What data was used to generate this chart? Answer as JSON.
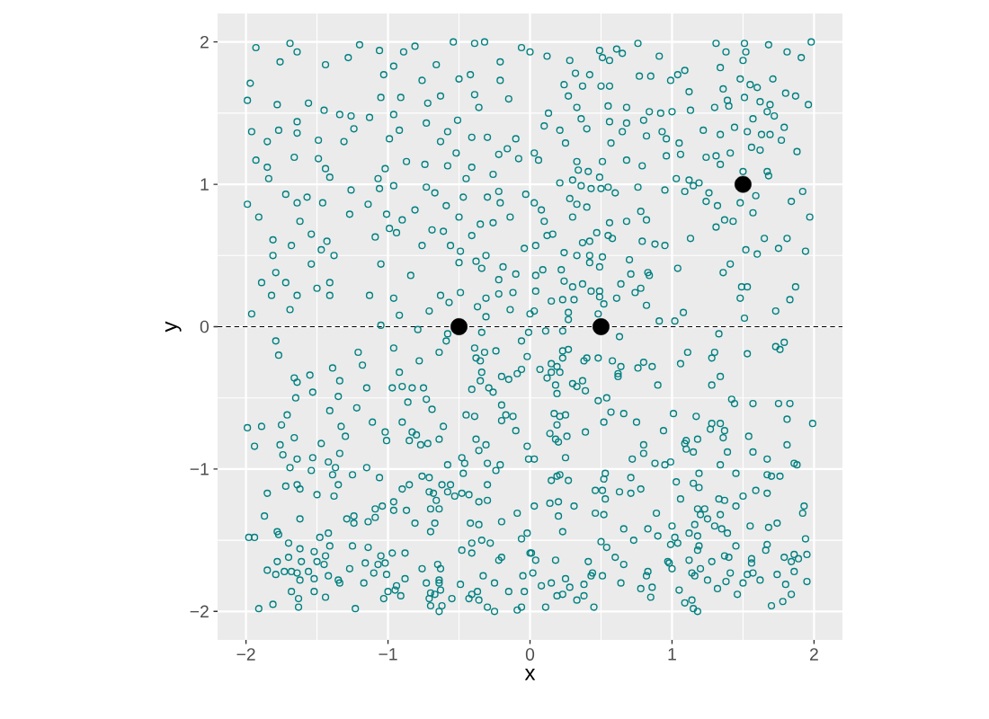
{
  "chart_data": {
    "type": "scatter",
    "xlabel": "x",
    "ylabel": "y",
    "xlim": [
      -2.2,
      2.2
    ],
    "ylim": [
      -2.2,
      2.2
    ],
    "xticks": [
      {
        "value": -2,
        "label": "−2"
      },
      {
        "value": -1,
        "label": "−1"
      },
      0,
      1,
      2
    ],
    "yticks": [
      {
        "value": -2,
        "label": "−2"
      },
      {
        "value": -1,
        "label": "−1"
      },
      0,
      1,
      2
    ],
    "grid": true,
    "marker": "circle",
    "ref_lines": [
      {
        "axis": "y",
        "value": 0,
        "line_style": "dashed",
        "color": "#000000"
      }
    ],
    "series": [
      {
        "color": "#008080",
        "x": [
          -1.93,
          -1.69,
          -1.64,
          -1.76,
          -1.97,
          -1.99,
          -1.44,
          -1.28,
          -1.2,
          -1.06,
          -0.89,
          -0.81,
          -0.54,
          -0.39,
          -0.32,
          -0.06,
          -1.03,
          -0.96,
          -0.66,
          -0.76,
          -0.5,
          -0.42,
          -0.21,
          -0.21,
          -0.15,
          -1.78,
          -1.56,
          -1.05,
          -0.91,
          -0.72,
          -0.63,
          -0.39,
          -0.36,
          -1.45,
          -1.34,
          -1.26,
          -1.13,
          -0.96,
          -1.96,
          -1.77,
          -1.64,
          -1.64,
          -1.24,
          -0.92,
          -0.73,
          -0.51,
          -0.58,
          -1.85,
          -1.49,
          -1.31,
          -0.99,
          -0.63,
          -0.41,
          -0.3,
          -0.1,
          -1.93,
          -1.66,
          -1.49,
          -1.44,
          -1.41,
          -1.85,
          -1.84,
          -1.02,
          -0.87,
          -0.74,
          -0.58,
          -0.52,
          -0.41,
          -0.22,
          -0.16,
          -0.08,
          -0.26,
          -1.07,
          -0.45,
          -1.99,
          -1.91,
          -1.72,
          -1.64,
          -1.57,
          -1.46,
          -1.26,
          -1.27,
          -1.14,
          -1.06,
          -0.96,
          -1.01,
          -0.9,
          -0.81,
          -0.73,
          -0.67,
          -0.59,
          -0.5,
          -0.47,
          -0.3,
          -0.22,
          -0.21,
          -0.14,
          -0.03,
          -1.62,
          -1.81,
          -1.68,
          -1.54,
          -1.43,
          -1.47,
          -1.38,
          -1.81,
          -1.79,
          -1.89,
          -1.72,
          -1.82,
          -1.64,
          -1.5,
          -1.41,
          -1.41,
          -1.69,
          -1.96,
          -1.54,
          -1.09,
          -1.05,
          -0.99,
          -0.94,
          -0.84,
          -1.13,
          -0.96,
          -0.92,
          -0.76,
          -0.69,
          -0.61,
          -0.56,
          -0.49,
          -0.5,
          -0.38,
          -0.41,
          -0.35,
          -0.26,
          -0.31,
          -0.34,
          -0.19,
          -0.1,
          -0.22,
          -0.04,
          -0.63,
          -0.49,
          -0.57,
          -0.71,
          -0.37,
          -0.31,
          -0.31,
          -0.22,
          -0.14,
          -0.12,
          0,
          -1.05,
          0,
          0.12,
          0.28,
          0.49,
          0.51,
          0.56,
          0.61,
          0.65,
          0.76,
          0.91,
          1.31,
          1.38,
          1.51,
          1.52,
          1.5,
          1.68,
          1.81,
          1.91,
          1.98,
          0.32,
          0.42,
          0.24,
          0.37,
          0.5,
          0.56,
          0.27,
          0.77,
          0.85,
          0.99,
          1.04,
          1.09,
          1.12,
          1.13,
          1.34,
          1.36,
          1.48,
          1.55,
          1.6,
          1.71,
          1.8,
          1.87,
          1.96,
          1.51,
          1.62,
          1.69,
          1.3,
          1.39,
          1.4,
          0.13,
          0.1,
          0.21,
          0.25,
          0.33,
          0.36,
          0.4,
          0.55,
          0.56,
          0.57,
          0.68,
          0.68,
          0.65,
          0.8,
          0.84,
          0.92,
          1,
          0.82,
          0.93,
          0.96,
          1.05,
          1.06,
          0.96,
          1.22,
          1.34,
          1.44,
          1.53,
          1.63,
          1.69,
          1.67,
          1.57,
          1.72,
          1.79,
          1.77,
          1.88,
          1.56,
          1.62,
          1.41,
          1.24,
          1.31,
          1.34,
          0.03,
          0.06,
          0.68,
          0.79,
          0.51,
          0.33,
          0.34,
          0.3,
          0.21,
          0.41,
          0.49,
          0.36,
          0.43,
          0.5,
          0.55,
          0.6,
          0.76,
          0.95,
          1.03,
          1.12,
          1.15,
          1.19,
          1.09,
          1.26,
          1.5,
          1.67,
          1.68,
          1.92,
          1.84,
          1.97,
          1.59,
          1.48,
          1.57,
          1.24,
          1.32,
          1.37,
          1.43,
          1.31,
          0.03,
          0.08,
          0.1,
          0.12,
          0.16,
          0.04,
          0.3,
          0.28,
          0.33,
          0.4,
          0.56,
          0.47,
          0.55,
          0.58,
          0.37,
          0.42,
          0.68,
          0.78,
          0.82,
          0.79,
          0.88,
          0.95,
          1.13,
          0.24,
          0.33,
          0.42,
          0.51,
          0.42,
          0.49,
          0.7,
          0.71,
          0.83,
          0.84,
          1.04,
          1.52,
          1.6,
          1.65,
          1.75,
          1.81,
          1.94,
          1.41,
          1.36,
          1.49,
          1.53,
          1.87,
          1.83,
          1.73,
          1.48,
          1.51,
          0.04,
          0.09,
          0.22,
          0.24,
          0.3,
          0.37,
          0.43,
          0.49,
          0.52,
          0.49,
          0.61,
          0.64,
          0.74,
          0.78,
          0.82,
          0.04,
          0.15,
          0.23,
          0.31,
          0.03,
          0.27,
          0.27,
          0.48,
          0.91,
          1.02,
          1.08,
          -0.79,
          -0.58,
          -0.59,
          -0.34,
          -0.01,
          -0.06,
          -1.79,
          -1.77,
          -0.96,
          -0.64,
          -0.39,
          -0.32,
          -0.24,
          -0.38,
          -0.35,
          -0.02,
          -1.21,
          -1.18,
          -1.39,
          -0.78,
          -0.92,
          -0.34,
          -0.35,
          -0.2,
          -0.15,
          -0.09,
          -0.06,
          -1.66,
          -1.64,
          -1.55,
          -1.34,
          -1.65,
          -1.53,
          -1.35,
          -1.15,
          -0.97,
          -0.9,
          -0.83,
          -0.75,
          -0.73,
          -0.69,
          -0.86,
          -0.41,
          -0.29,
          -0.26,
          -1.22,
          -1.41,
          -1.71,
          -1.75,
          -1.89,
          -1.99,
          -1.94,
          -1.66,
          -1.76,
          -1.74,
          -1.47,
          -1.33,
          -1.3,
          -1.34,
          -1.11,
          -1.02,
          -1.01,
          -0.9,
          -0.83,
          -0.8,
          -0.85,
          -0.77,
          -0.72,
          -0.64,
          -0.61,
          -0.45,
          -0.39,
          -0.38,
          -0.31,
          -0.36,
          -0.1,
          -0.02,
          -0.17,
          -0.12,
          -0.2,
          -0.2,
          -0.01,
          -1.64,
          -1.69,
          -1.53,
          -1.54,
          -1.42,
          -1.37,
          -1.39,
          -1.35,
          -1.38,
          -1.25,
          -1.15,
          -1.06,
          -1.5,
          -1.72,
          -1.64,
          -1.62,
          -1.85,
          -1.87,
          -1.62,
          -0.96,
          -0.96,
          -1.04,
          -1.09,
          -1.09,
          -1.14,
          -1.29,
          -1.24,
          -1.24,
          -0.9,
          -0.85,
          -0.87,
          -0.81,
          -0.76,
          -0.71,
          -0.71,
          -0.68,
          -0.66,
          -0.7,
          -0.64,
          -0.67,
          -0.7,
          -0.62,
          -0.56,
          -0.58,
          -0.53,
          -0.48,
          -0.43,
          -0.58,
          -0.47,
          -0.46,
          -0.48,
          -0.3,
          -0.21,
          -0.24,
          -0.3,
          -0.36,
          -0.3,
          -0.09,
          -0.2,
          -0.42,
          -0.36,
          -1.98,
          -1.94,
          -1.78,
          -1.77,
          -1.7,
          -1.62,
          -1.48,
          -1.42,
          -1.41,
          -1.52,
          -1.44,
          -1.5,
          -1.45,
          -1.7,
          -1.78,
          -1.61,
          -1.85,
          -1.79,
          -1.73,
          -1.68,
          -1.64,
          -1.62,
          -1.56,
          -1.52,
          -1.42,
          -1.35,
          -1.34,
          -1.68,
          -1.63,
          -1.63,
          -1.52,
          -1.44,
          -1.81,
          -1.91,
          -1.25,
          -1.14,
          -1.05,
          -1.07,
          -1.02,
          -1.16,
          -1.27,
          -1.1,
          -1.17,
          -1.23,
          -1.01,
          -0.97,
          -0.88,
          -0.88,
          -0.94,
          -1,
          -0.95,
          -0.91,
          -1.03,
          -0.76,
          -0.73,
          -0.65,
          -0.63,
          -0.64,
          -0.64,
          -0.63,
          -0.7,
          -0.67,
          -0.71,
          -0.7,
          -0.62,
          -0.64,
          -0.55,
          -0.49,
          -0.48,
          -0.41,
          -0.41,
          -0.34,
          -0.28,
          -0.22,
          -0.2,
          -0.33,
          -0.25,
          -0.43,
          -0.41,
          -0.37,
          -0.36,
          -0.3,
          -0.25,
          -0.15,
          -0.09,
          -0.06,
          -0.04,
          -0.05,
          -0.06,
          -0.02,
          0,
          0.11,
          0.23,
          0.63,
          1.33,
          0.23,
          0.27,
          0.23,
          0.38,
          0.4,
          0.48,
          0.58,
          0.64,
          0.62,
          0.62,
          0.76,
          0.8,
          0.86,
          0.9,
          0.07,
          0.15,
          0.19,
          0.21,
          0.15,
          0.12,
          0.18,
          0.19,
          0.3,
          0.33,
          0.37,
          0.39,
          0.48,
          0.54,
          1.06,
          1.11,
          1.28,
          1.3,
          1.28,
          1.34,
          1.53,
          1.73,
          1.76,
          1.79,
          1.42,
          1.44,
          1.57,
          1.75,
          1.83,
          1.81,
          1.99,
          0.17,
          0.21,
          0.25,
          0.19,
          0.14,
          0.18,
          0.2,
          0.26,
          0.39,
          0.52,
          0.57,
          0.66,
          0.75,
          0.94,
          1.01,
          1.17,
          0.8,
          0.8,
          0.72,
          0.03,
          0.25,
          0.88,
          0.95,
          0.99,
          1.09,
          1.1,
          1.1,
          1.15,
          1.18,
          1.27,
          1.28,
          1.34,
          1.37,
          1.36,
          1.39,
          1.34,
          1.54,
          1.57,
          1.67,
          1.81,
          1.86,
          1.88,
          0.15,
          0.19,
          0.21,
          0.27,
          0.03,
          0.14,
          0.2,
          0.2,
          0.23,
          0.31,
          0.46,
          0.51,
          0.53,
          0.52,
          0.53,
          0.46,
          0.52,
          0.63,
          0.71,
          0.71,
          0.78,
          0.66,
          0.83,
          0.89,
          0.9,
          1.03,
          1.06,
          1.15,
          1.19,
          1.19,
          1.18,
          1.23,
          1.2,
          1.25,
          1.3,
          1.34,
          1.35,
          1.39,
          1.33,
          1.37,
          1.45,
          1.5,
          1.59,
          1.45,
          1.67,
          1.7,
          1.76,
          1.67,
          1.93,
          1.92,
          1.74,
          1.68,
          1.55,
          1,
          0.99,
          1.02,
          1.04,
          1.16,
          1.12,
          1.18,
          1.19,
          1.18,
          0.5,
          0.54,
          0.73,
          0.6,
          0.66,
          0.41,
          0.18,
          0.04,
          0.01,
          0.02,
          0.08,
          0.15,
          0.25,
          0.28,
          0.19,
          0.23,
          0.33,
          0.38,
          0.38,
          0.43,
          0.44,
          0.51,
          0.45,
          0.11,
          0.64,
          0.78,
          0.82,
          0.83,
          0.86,
          0.85,
          0.97,
          0.98,
          1,
          1.12,
          1.14,
          1.16,
          1.2,
          1.25,
          1.28,
          1.05,
          1.09,
          1.14,
          1.15,
          1.18,
          1.32,
          1.38,
          1.41,
          1.37,
          1.4,
          1.45,
          1.46,
          1.5,
          1.53,
          1.57,
          1.56,
          1.56,
          1.62,
          1.66,
          1.67,
          1.74,
          1.79,
          1.86,
          1.84,
          1.89,
          1.95,
          1.94,
          1.86,
          1.95,
          1.8,
          1.84,
          1.7,
          1.78
        ],
        "values": [
          1.96,
          1.99,
          1.93,
          1.86,
          1.71,
          1.59,
          1.84,
          1.89,
          1.98,
          1.94,
          1.93,
          1.97,
          2,
          1.99,
          2,
          1.96,
          1.77,
          1.83,
          1.84,
          1.73,
          1.74,
          1.77,
          1.86,
          1.73,
          1.6,
          1.56,
          1.57,
          1.61,
          1.61,
          1.57,
          1.62,
          1.63,
          1.54,
          1.52,
          1.49,
          1.48,
          1.47,
          1.49,
          1.37,
          1.38,
          1.44,
          1.36,
          1.39,
          1.38,
          1.43,
          1.45,
          1.37,
          1.3,
          1.31,
          1.3,
          1.32,
          1.3,
          1.33,
          1.33,
          1.32,
          1.17,
          1.19,
          1.18,
          1.11,
          1.05,
          1.12,
          1.04,
          1.11,
          1.16,
          1.14,
          1.13,
          1.22,
          1.12,
          1.21,
          1.25,
          1.18,
          1.07,
          1.04,
          1.04,
          0.86,
          0.77,
          0.93,
          0.87,
          0.91,
          0.87,
          0.96,
          0.79,
          0.86,
          0.97,
          0.99,
          0.79,
          0.75,
          0.82,
          0.98,
          0.94,
          0.85,
          0.77,
          0.91,
          0.91,
          0.95,
          0.87,
          0.77,
          0.93,
          0.74,
          0.61,
          0.57,
          0.65,
          0.6,
          0.54,
          0.5,
          0.5,
          0.38,
          0.31,
          0.31,
          0.22,
          0.22,
          0.27,
          0.31,
          0.22,
          0.12,
          0.09,
          0.44,
          0.63,
          0.44,
          0.69,
          0.66,
          0.36,
          0.22,
          0.2,
          0.08,
          0.57,
          0.68,
          0.67,
          0.57,
          0.53,
          0.45,
          0.46,
          0.64,
          0.72,
          0.73,
          0.5,
          0.41,
          0.42,
          0.37,
          0.33,
          0.55,
          0.22,
          0.24,
          0.17,
          0.11,
          0.14,
          0.2,
          0.07,
          0.23,
          0.12,
          0.24,
          0.09,
          0.01,
          1.93,
          1.9,
          1.87,
          1.94,
          1.89,
          1.87,
          1.95,
          1.92,
          1.99,
          1.9,
          1.99,
          1.93,
          1.99,
          1.93,
          1.87,
          1.98,
          1.93,
          1.89,
          2,
          1.78,
          1.77,
          1.7,
          1.69,
          1.69,
          1.69,
          1.62,
          1.76,
          1.76,
          1.73,
          1.77,
          1.8,
          1.65,
          1.52,
          1.82,
          1.67,
          1.74,
          1.7,
          1.68,
          1.74,
          1.64,
          1.62,
          1.56,
          1.61,
          1.58,
          1.56,
          1.54,
          1.59,
          1.55,
          1.5,
          1.41,
          1.38,
          1.29,
          1.54,
          1.46,
          1.39,
          1.55,
          1.44,
          1.29,
          1.54,
          1.43,
          1.37,
          1.45,
          1.51,
          1.5,
          1.51,
          1.34,
          1.37,
          1.32,
          1.29,
          1.21,
          1.2,
          1.38,
          1.35,
          1.4,
          1.37,
          1.35,
          1.35,
          1.51,
          1.46,
          1.48,
          1.4,
          1.31,
          1.23,
          1.26,
          1.24,
          1.22,
          1.19,
          1.2,
          1.14,
          1.22,
          1.17,
          1.17,
          1.13,
          1.16,
          1.16,
          1.1,
          1.03,
          1.01,
          1.09,
          1.05,
          0.99,
          0.97,
          0.97,
          0.98,
          0.94,
          0.98,
          0.96,
          1.04,
          1.03,
          0.99,
          1.01,
          0.95,
          0.94,
          1.09,
          1.09,
          1.06,
          0.95,
          0.88,
          0.77,
          0.92,
          0.87,
          0.8,
          0.88,
          0.85,
          0.75,
          0.74,
          0.7,
          0.87,
          0.82,
          0.74,
          0.64,
          0.65,
          0.57,
          0.77,
          0.9,
          0.86,
          0.84,
          0.73,
          0.66,
          0.64,
          0.62,
          0.59,
          0.6,
          0.74,
          0.81,
          0.75,
          0.6,
          0.58,
          0.57,
          0.62,
          0.52,
          0.5,
          0.5,
          0.49,
          0.45,
          0.42,
          0.47,
          0.37,
          0.38,
          0.36,
          0.41,
          0.54,
          0.51,
          0.62,
          0.55,
          0.62,
          0.53,
          0.44,
          0.38,
          0.28,
          0.28,
          0.28,
          0.19,
          0.11,
          0.2,
          0.06,
          0.36,
          0.4,
          0.4,
          0.32,
          0.28,
          0.3,
          0.25,
          0.25,
          0.16,
          0.21,
          0.2,
          0.3,
          0.24,
          0.27,
          0.15,
          0.25,
          0.18,
          0.19,
          0.19,
          0.11,
          0.1,
          0.05,
          0.09,
          0.04,
          0.04,
          0.1,
          -0.02,
          -0.05,
          -0.1,
          -0.04,
          -0.04,
          -0.1,
          -0.1,
          -0.2,
          -0.15,
          -0.18,
          -0.15,
          -0.18,
          -0.17,
          -0.22,
          -0.24,
          -0.21,
          -0.18,
          -0.27,
          -0.29,
          -0.24,
          -0.32,
          -0.32,
          -0.38,
          -0.35,
          -0.37,
          -0.33,
          -0.3,
          -0.36,
          -0.39,
          -0.34,
          -0.38,
          -0.5,
          -0.46,
          -0.49,
          -0.43,
          -0.43,
          -0.42,
          -0.43,
          -0.43,
          -0.51,
          -0.58,
          -0.53,
          -0.44,
          -0.43,
          -0.46,
          -0.57,
          -0.59,
          -0.62,
          -0.69,
          -0.7,
          -0.71,
          -0.84,
          -0.78,
          -0.83,
          -0.9,
          -0.82,
          -0.7,
          -0.77,
          -0.89,
          -0.67,
          -0.74,
          -0.8,
          -0.67,
          -0.74,
          -0.76,
          -0.8,
          -0.83,
          -0.82,
          -0.79,
          -0.7,
          -0.62,
          -0.63,
          -0.79,
          -0.83,
          -0.87,
          -0.73,
          -0.84,
          -0.62,
          -0.63,
          -0.66,
          -0.55,
          -0.93,
          -0.93,
          -0.99,
          -0.92,
          -1.01,
          -0.95,
          -0.99,
          -1.04,
          -1.11,
          -1.19,
          -1.04,
          -0.99,
          -1.06,
          -1.18,
          -1.12,
          -1.11,
          -1.14,
          -1.17,
          -1.33,
          -1.35,
          -1.23,
          -1.29,
          -1.26,
          -1.28,
          -1.34,
          -1.37,
          -1.35,
          -1.33,
          -1.38,
          -1.14,
          -1.11,
          -1.29,
          -1.38,
          -1.05,
          -1.06,
          -1.16,
          -1.17,
          -1.22,
          -1.28,
          -1.28,
          -1.38,
          -1.44,
          -1.11,
          -1.11,
          -1.16,
          -1.19,
          -1.17,
          -1.18,
          -0.97,
          -1.03,
          -0.96,
          -0.92,
          -0.96,
          -0.97,
          -1.01,
          -1.11,
          -1.23,
          -1.22,
          -1.31,
          -1.37,
          -1.38,
          -1.39,
          -1.48,
          -1.48,
          -1.44,
          -1.46,
          -1.52,
          -1.56,
          -1.48,
          -1.45,
          -1.54,
          -1.58,
          -1.61,
          -1.65,
          -1.67,
          -1.62,
          -1.65,
          -1.65,
          -1.71,
          -1.74,
          -1.72,
          -1.72,
          -1.73,
          -1.78,
          -1.72,
          -1.77,
          -1.75,
          -1.78,
          -1.8,
          -1.86,
          -1.91,
          -1.97,
          -1.86,
          -1.9,
          -1.95,
          -1.98,
          -1.54,
          -1.55,
          -1.61,
          -1.67,
          -1.66,
          -1.66,
          -1.7,
          -1.73,
          -1.8,
          -1.98,
          -1.74,
          -1.59,
          -1.59,
          -1.77,
          -1.82,
          -1.86,
          -1.85,
          -1.89,
          -1.91,
          -1.7,
          -1.8,
          -1.67,
          -1.7,
          -1.78,
          -1.8,
          -1.85,
          -1.87,
          -1.88,
          -1.91,
          -1.96,
          -1.96,
          -2,
          -1.91,
          -1.81,
          -1.57,
          -1.52,
          -1.59,
          -1.5,
          -1.52,
          -1.64,
          -1.62,
          -1.75,
          -1.8,
          -1.91,
          -1.88,
          -1.86,
          -1.92,
          -1.97,
          -2,
          -1.86,
          -1.99,
          -1.97,
          -1.86,
          -1.75,
          -1.49,
          -1.45,
          -1.59,
          -0.03,
          -0.03,
          -0.07,
          -0.05,
          -0.17,
          -0.16,
          -0.22,
          -0.24,
          -0.22,
          -0.22,
          -0.24,
          -0.28,
          -0.33,
          -0.35,
          -0.29,
          -0.25,
          -0.28,
          -0.41,
          -0.3,
          -0.26,
          -0.28,
          -0.32,
          -0.32,
          -0.36,
          -0.41,
          -0.47,
          -0.4,
          -0.42,
          -0.38,
          -0.45,
          -0.52,
          -0.5,
          -0.26,
          -0.18,
          -0.22,
          -0.18,
          -0.41,
          -0.35,
          -0.19,
          -0.14,
          -0.16,
          -0.11,
          -0.51,
          -0.54,
          -0.54,
          -0.54,
          -0.54,
          -0.65,
          -0.68,
          -0.61,
          -0.63,
          -0.62,
          -0.69,
          -0.75,
          -0.79,
          -0.81,
          -0.77,
          -0.74,
          -0.67,
          -0.6,
          -0.61,
          -0.67,
          -0.73,
          -0.61,
          -0.63,
          -0.83,
          -0.89,
          -0.93,
          -0.93,
          -0.92,
          -0.96,
          -0.97,
          -0.95,
          -0.82,
          -0.8,
          -0.86,
          -0.88,
          -0.79,
          -0.72,
          -0.68,
          -0.68,
          -0.73,
          -0.78,
          -0.88,
          -0.97,
          -0.77,
          -0.88,
          -0.93,
          -0.83,
          -0.96,
          -0.97,
          -1.08,
          -1.05,
          -1.04,
          -1.08,
          -1.26,
          -1.24,
          -1.23,
          -1.33,
          -1.44,
          -1.26,
          -1.15,
          -1.15,
          -1.03,
          -1.07,
          -1.21,
          -1.31,
          -1.32,
          -1.16,
          -1.06,
          -1.17,
          -1.14,
          -1.42,
          -1.42,
          -1.31,
          -1.47,
          -1.09,
          -1.21,
          -1.1,
          -1.03,
          -1.13,
          -1.28,
          -1.28,
          -1.32,
          -1.35,
          -1.4,
          -1.32,
          -1.42,
          -1.45,
          -1.21,
          -1.22,
          -1.26,
          -1.19,
          -1.15,
          -1.03,
          -1.04,
          -1.05,
          -1.05,
          -1.17,
          -1.26,
          -1.31,
          -1.38,
          -1.41,
          -1.4,
          -1.4,
          -1.53,
          -1.48,
          -1.52,
          -1.39,
          -1.45,
          -1.47,
          -1.54,
          -1.57,
          -1.51,
          -1.55,
          -1.5,
          -1.62,
          -1.67,
          -1.65,
          -1.64,
          -1.64,
          -1.59,
          -1.73,
          -1.82,
          -1.8,
          -1.77,
          -1.83,
          -1.89,
          -1.88,
          -1.92,
          -1.81,
          -1.89,
          -1.75,
          -1.73,
          -1.75,
          -1.97,
          -1.97,
          -1.8,
          -1.84,
          -1.75,
          -1.72,
          -1.83,
          -1.9,
          -1.65,
          -1.66,
          -1.7,
          -1.64,
          -1.73,
          -1.75,
          -1.7,
          -1.78,
          -1.65,
          -1.85,
          -1.94,
          -1.92,
          -1.98,
          -2,
          -1.84,
          -1.79,
          -1.73,
          -1.61,
          -1.62,
          -1.54,
          -1.88,
          -1.8,
          -1.74,
          -1.73,
          -1.63,
          -1.66,
          -1.78,
          -1.57,
          -1.53,
          -1.74,
          -1.62,
          -1.6,
          -1.65,
          -1.63,
          -1.6,
          -1.49,
          -1.72,
          -1.79,
          -1.81,
          -1.88,
          -1.96,
          -1.93
        ]
      },
      {
        "color": "#000000",
        "x": [
          -0.5,
          0.5,
          1.5
        ],
        "values": [
          0,
          0,
          1
        ]
      }
    ]
  }
}
